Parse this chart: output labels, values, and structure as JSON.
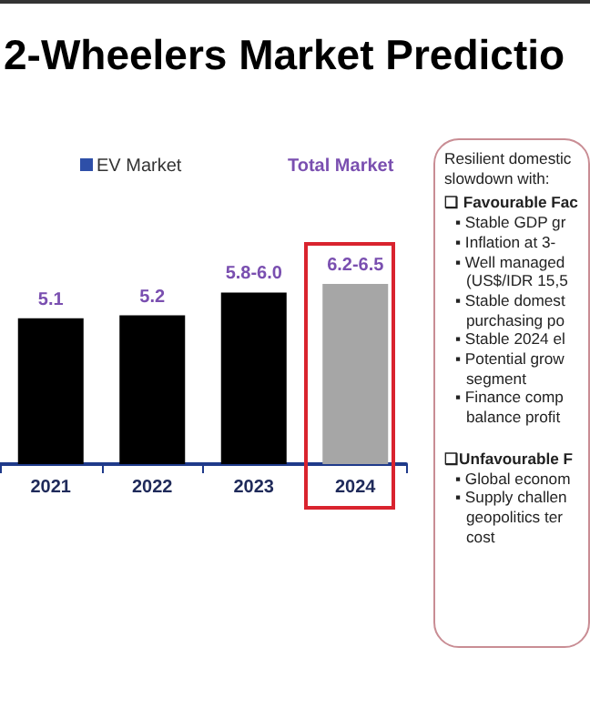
{
  "chart_data": {
    "type": "bar",
    "title": "2-Wheelers Market Predictio",
    "categories": [
      "2021",
      "2022",
      "2023",
      "2024"
    ],
    "values": [
      5.1,
      5.2,
      6.0,
      6.3
    ],
    "colors": [
      "#000000",
      "#000000",
      "#000000",
      "#a6a6a6"
    ],
    "value_labels": [
      "5.1",
      "5.2",
      "5.8-6.0",
      "6.2-6.5"
    ],
    "annotations": [
      "EV Market",
      "Total Market",
      "Resilient domestic",
      "slowdown with:",
      "❑ Favourable Fac",
      "▪ Stable GDP gr",
      "▪ Inflation at 3-",
      "▪ Well managed",
      "(US$/IDR 15,5",
      "▪ Stable domest",
      "purchasing po",
      "▪ Stable 2024 el",
      "▪ Potential grow",
      "segment",
      "▪ Finance comp",
      "balance profit",
      "❑Unfavourable F",
      "▪ Global econom",
      "▪ Supply challen",
      "geopolitics ter",
      "cost"
    ]
  }
}
